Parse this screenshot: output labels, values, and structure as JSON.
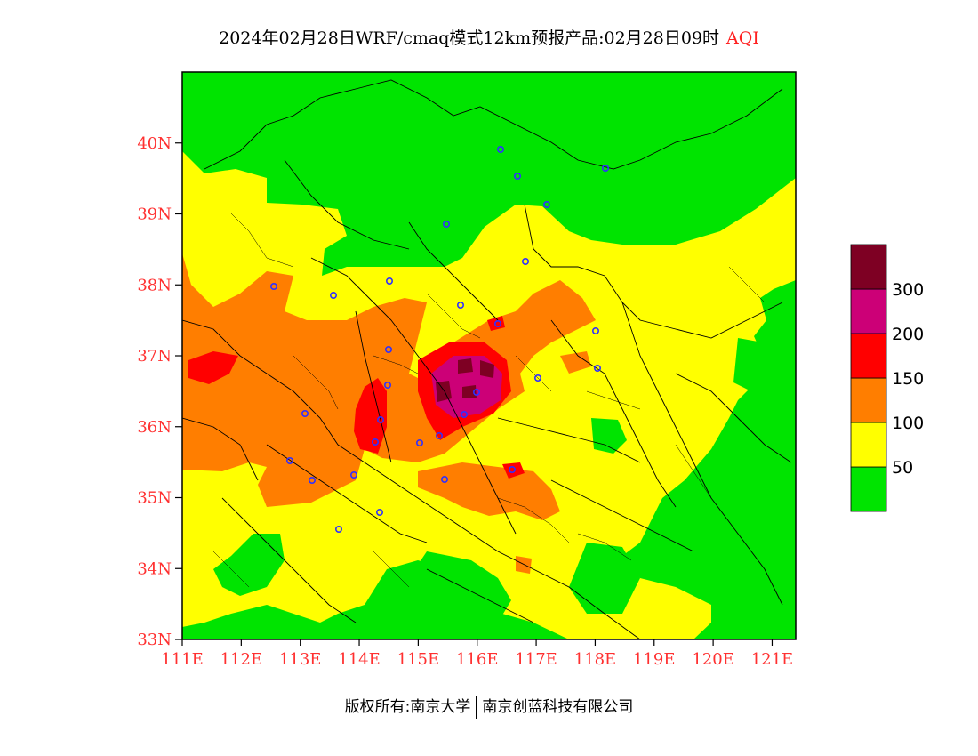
{
  "title": {
    "main": "2024年02月28日WRF/cmaq模式12km预报产品:02月28日09时",
    "variable": "AQI"
  },
  "map": {
    "lon_range": [
      111,
      121.4
    ],
    "lat_range": [
      33,
      41
    ],
    "lon_ticks": [
      "111E",
      "112E",
      "113E",
      "114E",
      "115E",
      "116E",
      "117E",
      "118E",
      "119E",
      "120E",
      "121E"
    ],
    "lat_ticks": [
      "33N",
      "34N",
      "35N",
      "36N",
      "37N",
      "38N",
      "39N",
      "40N"
    ],
    "label_color": "#ff3030"
  },
  "legend": {
    "bins": [
      {
        "color": "#00e400",
        "label": ""
      },
      {
        "color": "#ffff00",
        "label": "50"
      },
      {
        "color": "#ff7e00",
        "label": "100"
      },
      {
        "color": "#ff0000",
        "label": "150"
      },
      {
        "color": "#cc0077",
        "label": "200"
      },
      {
        "color": "#7e0023",
        "label": "300"
      }
    ]
  },
  "footer": {
    "left": "版权所有:南京大学",
    "right": "南京创蓝科技有限公司"
  }
}
